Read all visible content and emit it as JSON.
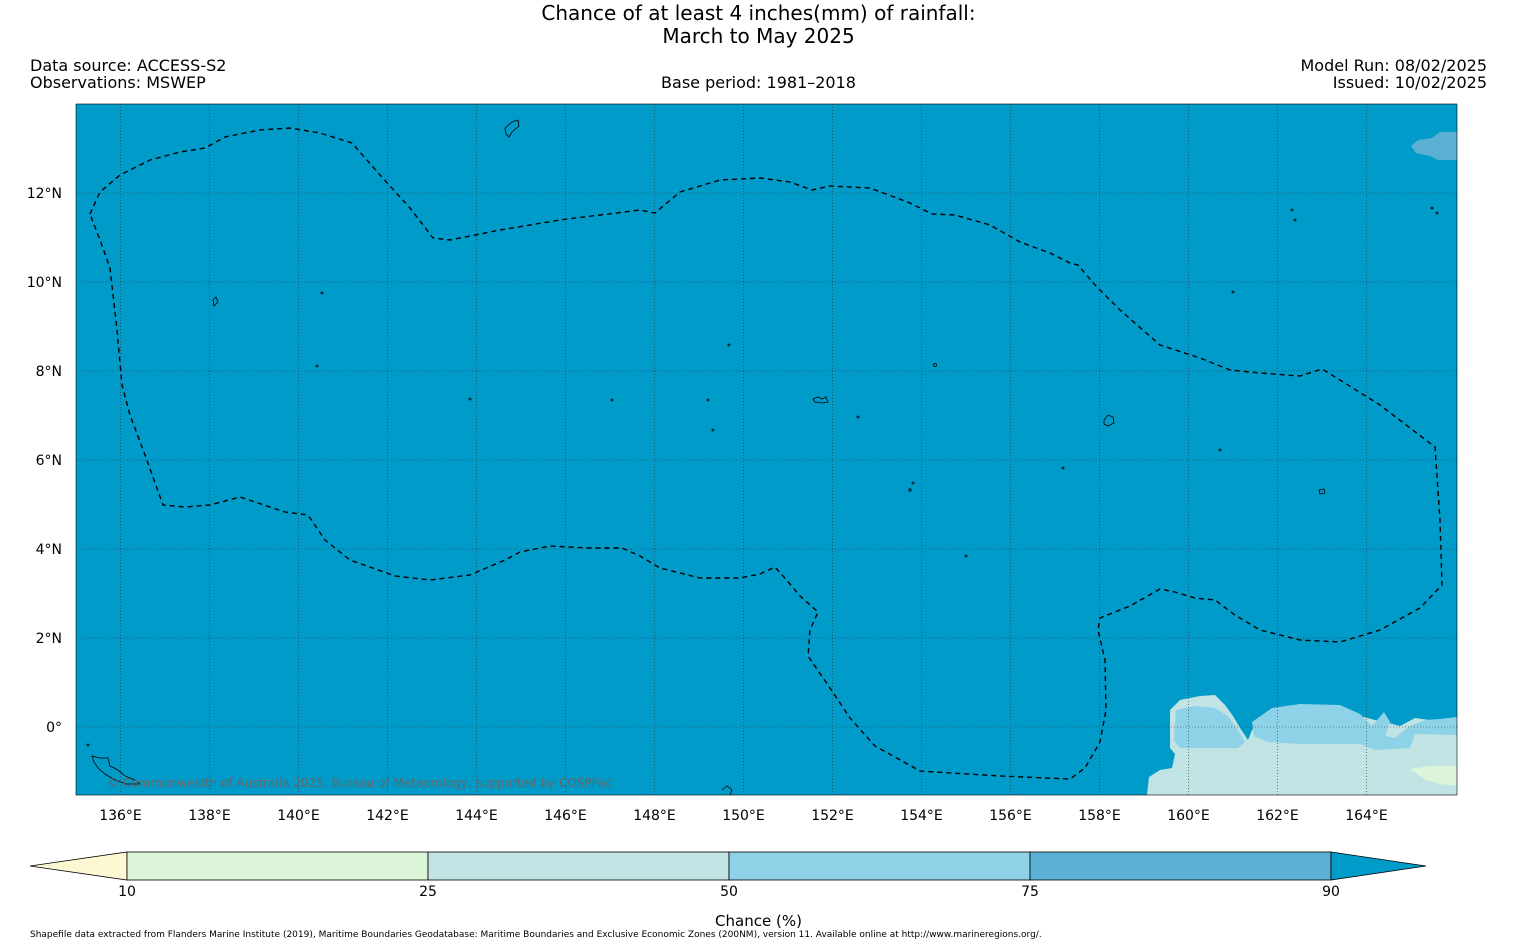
{
  "title_line1": "Chance of at least 4 inches(mm) of rainfall:",
  "title_line2": "March to May 2025",
  "data_source": "Data source: ACCESS-S2",
  "observations": "Observations: MSWEP",
  "base_period": "Base period: 1981–2018",
  "model_run": "Model Run: 08/02/2025",
  "issued": "Issued: 10/02/2025",
  "copyright": "© Commonwealth of Australia 2025, Bureau of Meteorology, supported by COSPPac",
  "footer": "Shapefile data extracted from Flanders Marine Institute (2019), Maritime Boundaries Geodatabase: Maritime Boundaries and Exclusive Economic Zones (200NM), version 11. Available online at http://www.marineregions.org/.",
  "map": {
    "lon_range": [
      135,
      166
    ],
    "lat_range": [
      -1.5,
      14
    ],
    "lon_ticks": [
      "136°E",
      "138°E",
      "140°E",
      "142°E",
      "144°E",
      "146°E",
      "148°E",
      "150°E",
      "152°E",
      "154°E",
      "156°E",
      "158°E",
      "160°E",
      "162°E",
      "164°E"
    ],
    "lat_ticks": [
      "12°N",
      "10°N",
      "8°N",
      "6°N",
      "4°N",
      "2°N",
      "0°"
    ],
    "background_color": "#009bc8"
  },
  "colorbar": {
    "label": "Chance (%)",
    "ticks": [
      "10",
      "25",
      "50",
      "75",
      "90"
    ],
    "colors": [
      "#fdf8d4",
      "#dcf5d8",
      "#c1e3e3",
      "#8ed2e8",
      "#5cb0d3",
      "#009bc8"
    ]
  }
}
